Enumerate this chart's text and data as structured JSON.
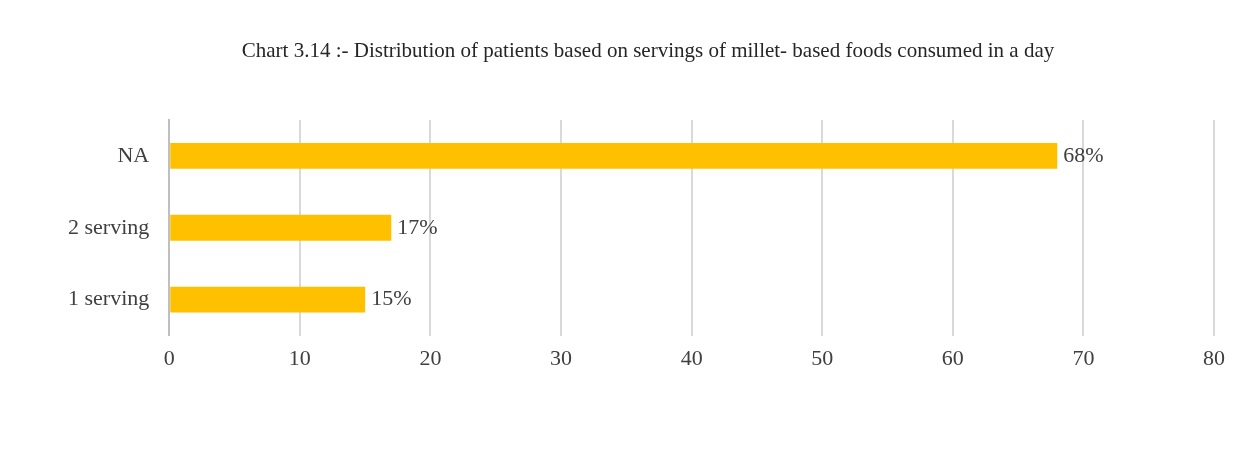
{
  "chart_data": {
    "type": "bar",
    "orientation": "horizontal",
    "title": "Chart 3.14 :- Distribution of patients based on servings of millet- based foods consumed in a day",
    "categories": [
      "NA",
      "2 serving",
      "1 serving"
    ],
    "values": [
      68,
      17,
      15
    ],
    "color": "#ffc000",
    "value_labels": [
      "68%",
      "17%",
      "15%"
    ],
    "xlim": [
      0,
      80
    ],
    "xticks": [
      0,
      10,
      20,
      30,
      40,
      50,
      60,
      70,
      80
    ],
    "grid": "x",
    "legend": false
  }
}
